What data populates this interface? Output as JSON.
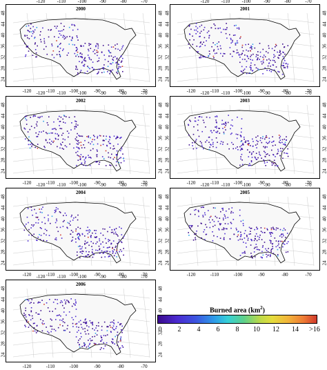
{
  "panels": [
    {
      "year": "2000",
      "top_ticks": [
        "-120",
        "-110",
        "-100",
        "-90",
        "-80",
        "-70"
      ],
      "bottom_ticks": [
        "-120",
        "-110",
        "-100",
        "-90",
        "-80",
        "-70"
      ],
      "lat_ticks": [
        "48",
        "44",
        "40",
        "36",
        "32",
        "28",
        "24"
      ]
    },
    {
      "year": "2001",
      "top_ticks": [
        "-120",
        "-110",
        "-100",
        "-90",
        "-80",
        "-70"
      ],
      "bottom_ticks": [
        "-120",
        "-110",
        "-100",
        "-90",
        "-80",
        "-70"
      ],
      "lat_ticks": [
        "48",
        "44",
        "40",
        "36",
        "32",
        "28",
        "24"
      ]
    },
    {
      "year": "2002",
      "top_ticks": [
        "-120",
        "-110",
        "-100",
        "-90",
        "-80",
        "-70"
      ],
      "bottom_ticks": [
        "-120",
        "-110",
        "-100",
        "-90",
        "-80",
        "-70"
      ],
      "lat_ticks": [
        "48",
        "44",
        "40",
        "36",
        "32",
        "28",
        "24"
      ]
    },
    {
      "year": "2003",
      "top_ticks": [
        "-120",
        "-110",
        "-100",
        "-90",
        "-80",
        "-70"
      ],
      "bottom_ticks": [
        "-120",
        "-110",
        "-100",
        "-90",
        "-80",
        "-70"
      ],
      "lat_ticks": [
        "48",
        "44",
        "40",
        "36",
        "32",
        "28",
        "24"
      ]
    },
    {
      "year": "2004",
      "top_ticks": [
        "-120",
        "-110",
        "-100",
        "-90",
        "-80",
        "-70"
      ],
      "bottom_ticks": [
        "-120",
        "-110",
        "-100",
        "-90",
        "-80",
        "-70"
      ],
      "lat_ticks": [
        "48",
        "44",
        "40",
        "36",
        "32",
        "28",
        "24"
      ]
    },
    {
      "year": "2005",
      "top_ticks": [
        "-120",
        "-110",
        "-100",
        "-90",
        "-80",
        "-70"
      ],
      "bottom_ticks": [
        "-120",
        "-110",
        "-100",
        "-90",
        "-80",
        "-70"
      ],
      "lat_ticks": [
        "48",
        "44",
        "40",
        "36",
        "32",
        "28",
        "24"
      ]
    },
    {
      "year": "2006",
      "top_ticks": [
        "-120",
        "-110",
        "-100",
        "-90",
        "-80",
        "-70"
      ],
      "bottom_ticks": [
        "-120",
        "-110",
        "-100",
        "-90",
        "-80",
        "-70"
      ],
      "lat_ticks": [
        "48",
        "44",
        "40",
        "36",
        "32",
        "28",
        "24"
      ]
    }
  ],
  "legend": {
    "title": "Burned area (km",
    "title_sup": "2",
    "title_end": ")",
    "ticks": [
      "0",
      "2",
      "4",
      "6",
      "8",
      "10",
      "12",
      "14",
      ">16"
    ],
    "colors": [
      "#3a0a8c",
      "#4b2ad0",
      "#3c55e0",
      "#2d9fe8",
      "#36d0d6",
      "#5dd08c",
      "#b9d94a",
      "#e4dc3c",
      "#f2b43a",
      "#ee7a35",
      "#d03a2c"
    ]
  }
}
